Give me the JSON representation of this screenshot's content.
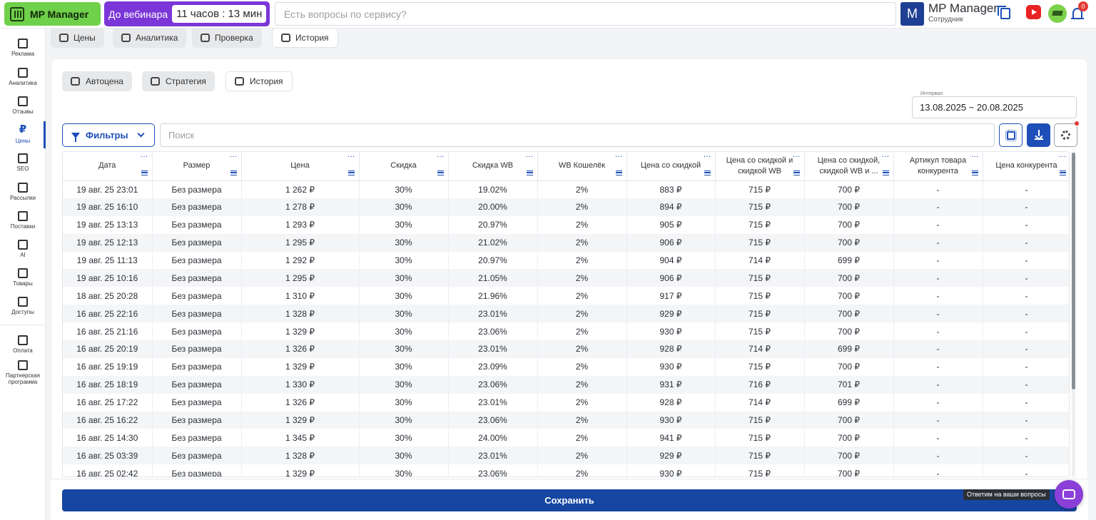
{
  "topbar": {
    "logo_text": "MP Manager",
    "webinar_label": "До вебинара",
    "webinar_timer": "11 часов : 13 мин",
    "search_placeholder": "Есть вопросы по сервису?",
    "account_initial": "M",
    "account_name": "MP Manager",
    "account_role": "Сотрудник",
    "notifications_count": "0",
    "icons": [
      "barcode-logo-icon",
      "copy-icon",
      "video-icon",
      "graduation-icon",
      "bell-icon"
    ]
  },
  "sidebar": {
    "items": [
      {
        "label": "Реклама",
        "icon": "ads-icon"
      },
      {
        "label": "Аналитика",
        "icon": "bar-chart-icon"
      },
      {
        "label": "Отзывы",
        "icon": "reviews-icon"
      },
      {
        "label": "Цены",
        "icon": "ruble-icon",
        "glyph": "₽",
        "active": true
      },
      {
        "label": "SEO",
        "icon": "seo-icon"
      },
      {
        "label": "Рассылки",
        "icon": "mail-icon"
      },
      {
        "label": "Поставки",
        "icon": "truck-icon"
      },
      {
        "label": "AI",
        "icon": "chip-icon"
      },
      {
        "label": "Товары",
        "icon": "box-icon"
      },
      {
        "label": "Доступы",
        "icon": "lock-icon"
      },
      {
        "label": "Оплата",
        "icon": "wallet-icon"
      },
      {
        "label": "Партнерская программа",
        "icon": "partners-icon"
      }
    ]
  },
  "main_tabs": [
    {
      "label": "Цены",
      "icon": "price-cycle-icon"
    },
    {
      "label": "Аналитика",
      "icon": "bar-chart-icon"
    },
    {
      "label": "Проверка",
      "icon": "search-icon"
    },
    {
      "label": "История",
      "icon": "history-book-icon",
      "active": true
    }
  ],
  "sub_tabs": [
    {
      "label": "Автоцена",
      "icon": "auto-price-icon"
    },
    {
      "label": "Стратегия",
      "icon": "strategy-icon"
    },
    {
      "label": "История",
      "icon": "history-book-icon",
      "active": true
    }
  ],
  "interval": {
    "label": "Интервал",
    "value": "13.08.2025 ~ 20.08.2025"
  },
  "toolbar": {
    "filters_label": "Фильтры",
    "search_placeholder": "Поиск",
    "action_icons": [
      "ai-chip-icon",
      "download-icon",
      "settings-gear-icon"
    ]
  },
  "table": {
    "columns": [
      "Дата",
      "Размер",
      "Цена",
      "Скидка",
      "Скидка WB",
      "WB Кошелёк",
      "Цена со скидкой",
      "Цена со скидкой и скидкой WB",
      "Цена со скидкой, скидкой WB и ...",
      "Артикул товара конкурента",
      "Цена конкурента"
    ],
    "rows": [
      [
        "19 авг. 25 23:01",
        "Без размера",
        "1 262 ₽",
        "30%",
        "19.02%",
        "2%",
        "883 ₽",
        "715 ₽",
        "700 ₽",
        "-",
        "-"
      ],
      [
        "19 авг. 25 16:10",
        "Без размера",
        "1 278 ₽",
        "30%",
        "20.00%",
        "2%",
        "894 ₽",
        "715 ₽",
        "700 ₽",
        "-",
        "-"
      ],
      [
        "19 авг. 25 13:13",
        "Без размера",
        "1 293 ₽",
        "30%",
        "20.97%",
        "2%",
        "905 ₽",
        "715 ₽",
        "700 ₽",
        "-",
        "-"
      ],
      [
        "19 авг. 25 12:13",
        "Без размера",
        "1 295 ₽",
        "30%",
        "21.02%",
        "2%",
        "906 ₽",
        "715 ₽",
        "700 ₽",
        "-",
        "-"
      ],
      [
        "19 авг. 25 11:13",
        "Без размера",
        "1 292 ₽",
        "30%",
        "20.97%",
        "2%",
        "904 ₽",
        "714 ₽",
        "699 ₽",
        "-",
        "-"
      ],
      [
        "19 авг. 25 10:16",
        "Без размера",
        "1 295 ₽",
        "30%",
        "21.05%",
        "2%",
        "906 ₽",
        "715 ₽",
        "700 ₽",
        "-",
        "-"
      ],
      [
        "18 авг. 25 20:28",
        "Без размера",
        "1 310 ₽",
        "30%",
        "21.96%",
        "2%",
        "917 ₽",
        "715 ₽",
        "700 ₽",
        "-",
        "-"
      ],
      [
        "16 авг. 25 22:16",
        "Без размера",
        "1 328 ₽",
        "30%",
        "23.01%",
        "2%",
        "929 ₽",
        "715 ₽",
        "700 ₽",
        "-",
        "-"
      ],
      [
        "16 авг. 25 21:16",
        "Без размера",
        "1 329 ₽",
        "30%",
        "23.06%",
        "2%",
        "930 ₽",
        "715 ₽",
        "700 ₽",
        "-",
        "-"
      ],
      [
        "16 авг. 25 20:19",
        "Без размера",
        "1 326 ₽",
        "30%",
        "23.01%",
        "2%",
        "928 ₽",
        "714 ₽",
        "699 ₽",
        "-",
        "-"
      ],
      [
        "16 авг. 25 19:19",
        "Без размера",
        "1 329 ₽",
        "30%",
        "23.09%",
        "2%",
        "930 ₽",
        "715 ₽",
        "700 ₽",
        "-",
        "-"
      ],
      [
        "16 авг. 25 18:19",
        "Без размера",
        "1 330 ₽",
        "30%",
        "23.06%",
        "2%",
        "931 ₽",
        "716 ₽",
        "701 ₽",
        "-",
        "-"
      ],
      [
        "16 авг. 25 17:22",
        "Без размера",
        "1 326 ₽",
        "30%",
        "23.01%",
        "2%",
        "928 ₽",
        "714 ₽",
        "699 ₽",
        "-",
        "-"
      ],
      [
        "16 авг. 25 16:22",
        "Без размера",
        "1 329 ₽",
        "30%",
        "23.06%",
        "2%",
        "930 ₽",
        "715 ₽",
        "700 ₽",
        "-",
        "-"
      ],
      [
        "16 авг. 25 14:30",
        "Без размера",
        "1 345 ₽",
        "30%",
        "24.00%",
        "2%",
        "941 ₽",
        "715 ₽",
        "700 ₽",
        "-",
        "-"
      ],
      [
        "16 авг. 25 03:39",
        "Без размера",
        "1 328 ₽",
        "30%",
        "23.01%",
        "2%",
        "929 ₽",
        "715 ₽",
        "700 ₽",
        "-",
        "-"
      ],
      [
        "16 авг. 25 02:42",
        "Без размера",
        "1 329 ₽",
        "30%",
        "23.06%",
        "2%",
        "930 ₽",
        "715 ₽",
        "700 ₽",
        "-",
        "-"
      ]
    ]
  },
  "footer": {
    "save_label": "Сохранить",
    "chat_tooltip": "Ответим на ваши вопросы"
  },
  "colors": {
    "brand_green": "#6fd04a",
    "webinar_purple": "#7a36d6",
    "primary_blue": "#1e4fb8",
    "save_blue": "#1746a2",
    "chat_purple": "#8b3fd8",
    "badge_red": "#e53935"
  }
}
